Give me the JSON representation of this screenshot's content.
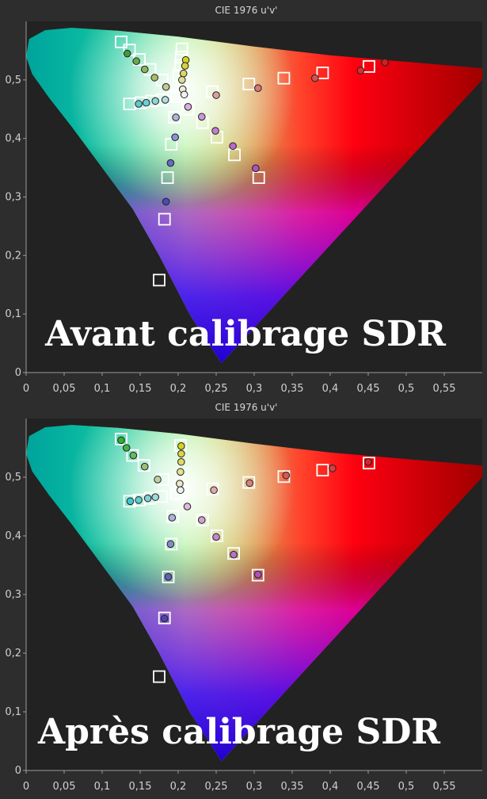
{
  "colors": {
    "page_background": "#2d2d2d",
    "plot_background": "#222222",
    "axis": "#9a9a9a",
    "target_box": "#ffffff"
  },
  "chart_data": [
    {
      "type": "scatter",
      "title": "CIE 1976 u'v'",
      "overlay_label": "Avant calibrage SDR",
      "xlim": [
        0,
        0.6
      ],
      "ylim": [
        0,
        0.6
      ],
      "xticks": [
        "0",
        "0,05",
        "0,1",
        "0,15",
        "0,2",
        "0,25",
        "0,3",
        "0,35",
        "0,4",
        "0,45",
        "0,5",
        "0,55"
      ],
      "yticks": [
        "0",
        "0,1",
        "0,2",
        "0,3",
        "0,4",
        "0,5"
      ],
      "targets": [
        {
          "u": 0.125,
          "v": 0.565
        },
        {
          "u": 0.136,
          "v": 0.551
        },
        {
          "u": 0.149,
          "v": 0.535
        },
        {
          "u": 0.163,
          "v": 0.518
        },
        {
          "u": 0.179,
          "v": 0.5
        },
        {
          "u": 0.205,
          "v": 0.553
        },
        {
          "u": 0.204,
          "v": 0.539
        },
        {
          "u": 0.203,
          "v": 0.525
        },
        {
          "u": 0.201,
          "v": 0.507
        },
        {
          "u": 0.245,
          "v": 0.48
        },
        {
          "u": 0.293,
          "v": 0.493
        },
        {
          "u": 0.339,
          "v": 0.503
        },
        {
          "u": 0.39,
          "v": 0.512
        },
        {
          "u": 0.451,
          "v": 0.523
        },
        {
          "u": 0.136,
          "v": 0.459
        },
        {
          "u": 0.151,
          "v": 0.461
        },
        {
          "u": 0.165,
          "v": 0.464
        },
        {
          "u": 0.179,
          "v": 0.466
        },
        {
          "u": 0.195,
          "v": 0.436
        },
        {
          "u": 0.191,
          "v": 0.39
        },
        {
          "u": 0.186,
          "v": 0.333
        },
        {
          "u": 0.182,
          "v": 0.262
        },
        {
          "u": 0.175,
          "v": 0.158
        },
        {
          "u": 0.213,
          "v": 0.45
        },
        {
          "u": 0.232,
          "v": 0.427
        },
        {
          "u": 0.251,
          "v": 0.402
        },
        {
          "u": 0.274,
          "v": 0.372
        },
        {
          "u": 0.306,
          "v": 0.333
        },
        {
          "u": 0.198,
          "v": 0.472
        }
      ],
      "measured": [
        {
          "u": 0.133,
          "v": 0.545,
          "color": "#3f9a3a"
        },
        {
          "u": 0.145,
          "v": 0.532,
          "color": "#6aa84a"
        },
        {
          "u": 0.156,
          "v": 0.518,
          "color": "#8fb35c"
        },
        {
          "u": 0.169,
          "v": 0.504,
          "color": "#a9bb6c"
        },
        {
          "u": 0.184,
          "v": 0.488,
          "color": "#c4c990"
        },
        {
          "u": 0.21,
          "v": 0.534,
          "color": "#d8d020"
        },
        {
          "u": 0.209,
          "v": 0.524,
          "color": "#d8d040"
        },
        {
          "u": 0.207,
          "v": 0.511,
          "color": "#dcd468"
        },
        {
          "u": 0.205,
          "v": 0.5,
          "color": "#e0dc98"
        },
        {
          "u": 0.206,
          "v": 0.484,
          "color": "#f0eed8"
        },
        {
          "u": 0.25,
          "v": 0.474,
          "color": "#d8a0a0"
        },
        {
          "u": 0.305,
          "v": 0.486,
          "color": "#d87878"
        },
        {
          "u": 0.38,
          "v": 0.503,
          "color": "#d85050"
        },
        {
          "u": 0.44,
          "v": 0.516,
          "color": "#d83030"
        },
        {
          "u": 0.472,
          "v": 0.53,
          "color": "#d02020"
        },
        {
          "u": 0.148,
          "v": 0.459,
          "color": "#60c8d0"
        },
        {
          "u": 0.158,
          "v": 0.461,
          "color": "#70ccd4"
        },
        {
          "u": 0.17,
          "v": 0.464,
          "color": "#90d4d8"
        },
        {
          "u": 0.183,
          "v": 0.466,
          "color": "#b0dce0"
        },
        {
          "u": 0.197,
          "v": 0.436,
          "color": "#b0b0e0"
        },
        {
          "u": 0.196,
          "v": 0.402,
          "color": "#9090d8"
        },
        {
          "u": 0.19,
          "v": 0.358,
          "color": "#6868c8"
        },
        {
          "u": 0.184,
          "v": 0.292,
          "color": "#4a4ab8"
        },
        {
          "u": 0.213,
          "v": 0.454,
          "color": "#d8b0e0"
        },
        {
          "u": 0.231,
          "v": 0.437,
          "color": "#c898d8"
        },
        {
          "u": 0.249,
          "v": 0.413,
          "color": "#c080d0"
        },
        {
          "u": 0.272,
          "v": 0.387,
          "color": "#b868c8"
        },
        {
          "u": 0.302,
          "v": 0.349,
          "color": "#b050c0"
        },
        {
          "u": 0.208,
          "v": 0.475,
          "color": "#f0f0f0"
        }
      ]
    },
    {
      "type": "scatter",
      "title": "CIE 1976 u'v'",
      "overlay_label": "Après calibrage SDR",
      "xlim": [
        0,
        0.6
      ],
      "ylim": [
        0,
        0.6
      ],
      "xticks": [
        "0",
        "0,05",
        "0,1",
        "0,15",
        "0,2",
        "0,25",
        "0,3",
        "0,35",
        "0,4",
        "0,45",
        "0,5",
        "0,55"
      ],
      "yticks": [
        "0",
        "0,1",
        "0,2",
        "0,3",
        "0,4",
        "0,5"
      ],
      "targets": [
        {
          "u": 0.125,
          "v": 0.565
        },
        {
          "u": 0.14,
          "v": 0.537
        },
        {
          "u": 0.155,
          "v": 0.52
        },
        {
          "u": 0.18,
          "v": 0.496
        },
        {
          "u": 0.203,
          "v": 0.554
        },
        {
          "u": 0.245,
          "v": 0.48
        },
        {
          "u": 0.293,
          "v": 0.491
        },
        {
          "u": 0.339,
          "v": 0.501
        },
        {
          "u": 0.39,
          "v": 0.512
        },
        {
          "u": 0.451,
          "v": 0.524
        },
        {
          "u": 0.136,
          "v": 0.459
        },
        {
          "u": 0.149,
          "v": 0.461
        },
        {
          "u": 0.163,
          "v": 0.464
        },
        {
          "u": 0.178,
          "v": 0.467
        },
        {
          "u": 0.193,
          "v": 0.433
        },
        {
          "u": 0.191,
          "v": 0.386
        },
        {
          "u": 0.187,
          "v": 0.33
        },
        {
          "u": 0.182,
          "v": 0.26
        },
        {
          "u": 0.175,
          "v": 0.16
        },
        {
          "u": 0.232,
          "v": 0.427
        },
        {
          "u": 0.251,
          "v": 0.4
        },
        {
          "u": 0.273,
          "v": 0.37
        },
        {
          "u": 0.305,
          "v": 0.333
        },
        {
          "u": 0.198,
          "v": 0.472
        }
      ],
      "measured": [
        {
          "u": 0.125,
          "v": 0.563,
          "color": "#30b030"
        },
        {
          "u": 0.132,
          "v": 0.55,
          "color": "#48b048"
        },
        {
          "u": 0.141,
          "v": 0.537,
          "color": "#68b860"
        },
        {
          "u": 0.156,
          "v": 0.518,
          "color": "#98c078"
        },
        {
          "u": 0.173,
          "v": 0.496,
          "color": "#c0d0a0"
        },
        {
          "u": 0.204,
          "v": 0.553,
          "color": "#d8d020"
        },
        {
          "u": 0.204,
          "v": 0.54,
          "color": "#dcd440"
        },
        {
          "u": 0.204,
          "v": 0.526,
          "color": "#e0d868"
        },
        {
          "u": 0.203,
          "v": 0.509,
          "color": "#e4e090"
        },
        {
          "u": 0.202,
          "v": 0.489,
          "color": "#ece8c8"
        },
        {
          "u": 0.247,
          "v": 0.478,
          "color": "#e0a8a8"
        },
        {
          "u": 0.294,
          "v": 0.49,
          "color": "#d88080"
        },
        {
          "u": 0.342,
          "v": 0.503,
          "color": "#d85858"
        },
        {
          "u": 0.403,
          "v": 0.515,
          "color": "#d84040"
        },
        {
          "u": 0.45,
          "v": 0.526,
          "color": "#d02828"
        },
        {
          "u": 0.137,
          "v": 0.459,
          "color": "#40c8d0"
        },
        {
          "u": 0.148,
          "v": 0.461,
          "color": "#60ccd4"
        },
        {
          "u": 0.16,
          "v": 0.464,
          "color": "#80d0d8"
        },
        {
          "u": 0.17,
          "v": 0.466,
          "color": "#a0d8dc"
        },
        {
          "u": 0.192,
          "v": 0.431,
          "color": "#b0b0e0"
        },
        {
          "u": 0.19,
          "v": 0.386,
          "color": "#8888d0"
        },
        {
          "u": 0.187,
          "v": 0.33,
          "color": "#6060c0"
        },
        {
          "u": 0.182,
          "v": 0.259,
          "color": "#4848b0"
        },
        {
          "u": 0.212,
          "v": 0.45,
          "color": "#e0b8e0"
        },
        {
          "u": 0.231,
          "v": 0.427,
          "color": "#d0a0d8"
        },
        {
          "u": 0.25,
          "v": 0.398,
          "color": "#c488d0"
        },
        {
          "u": 0.273,
          "v": 0.368,
          "color": "#b870c8"
        },
        {
          "u": 0.305,
          "v": 0.334,
          "color": "#b050c0"
        },
        {
          "u": 0.203,
          "v": 0.478,
          "color": "#f0f0f0"
        }
      ]
    }
  ]
}
